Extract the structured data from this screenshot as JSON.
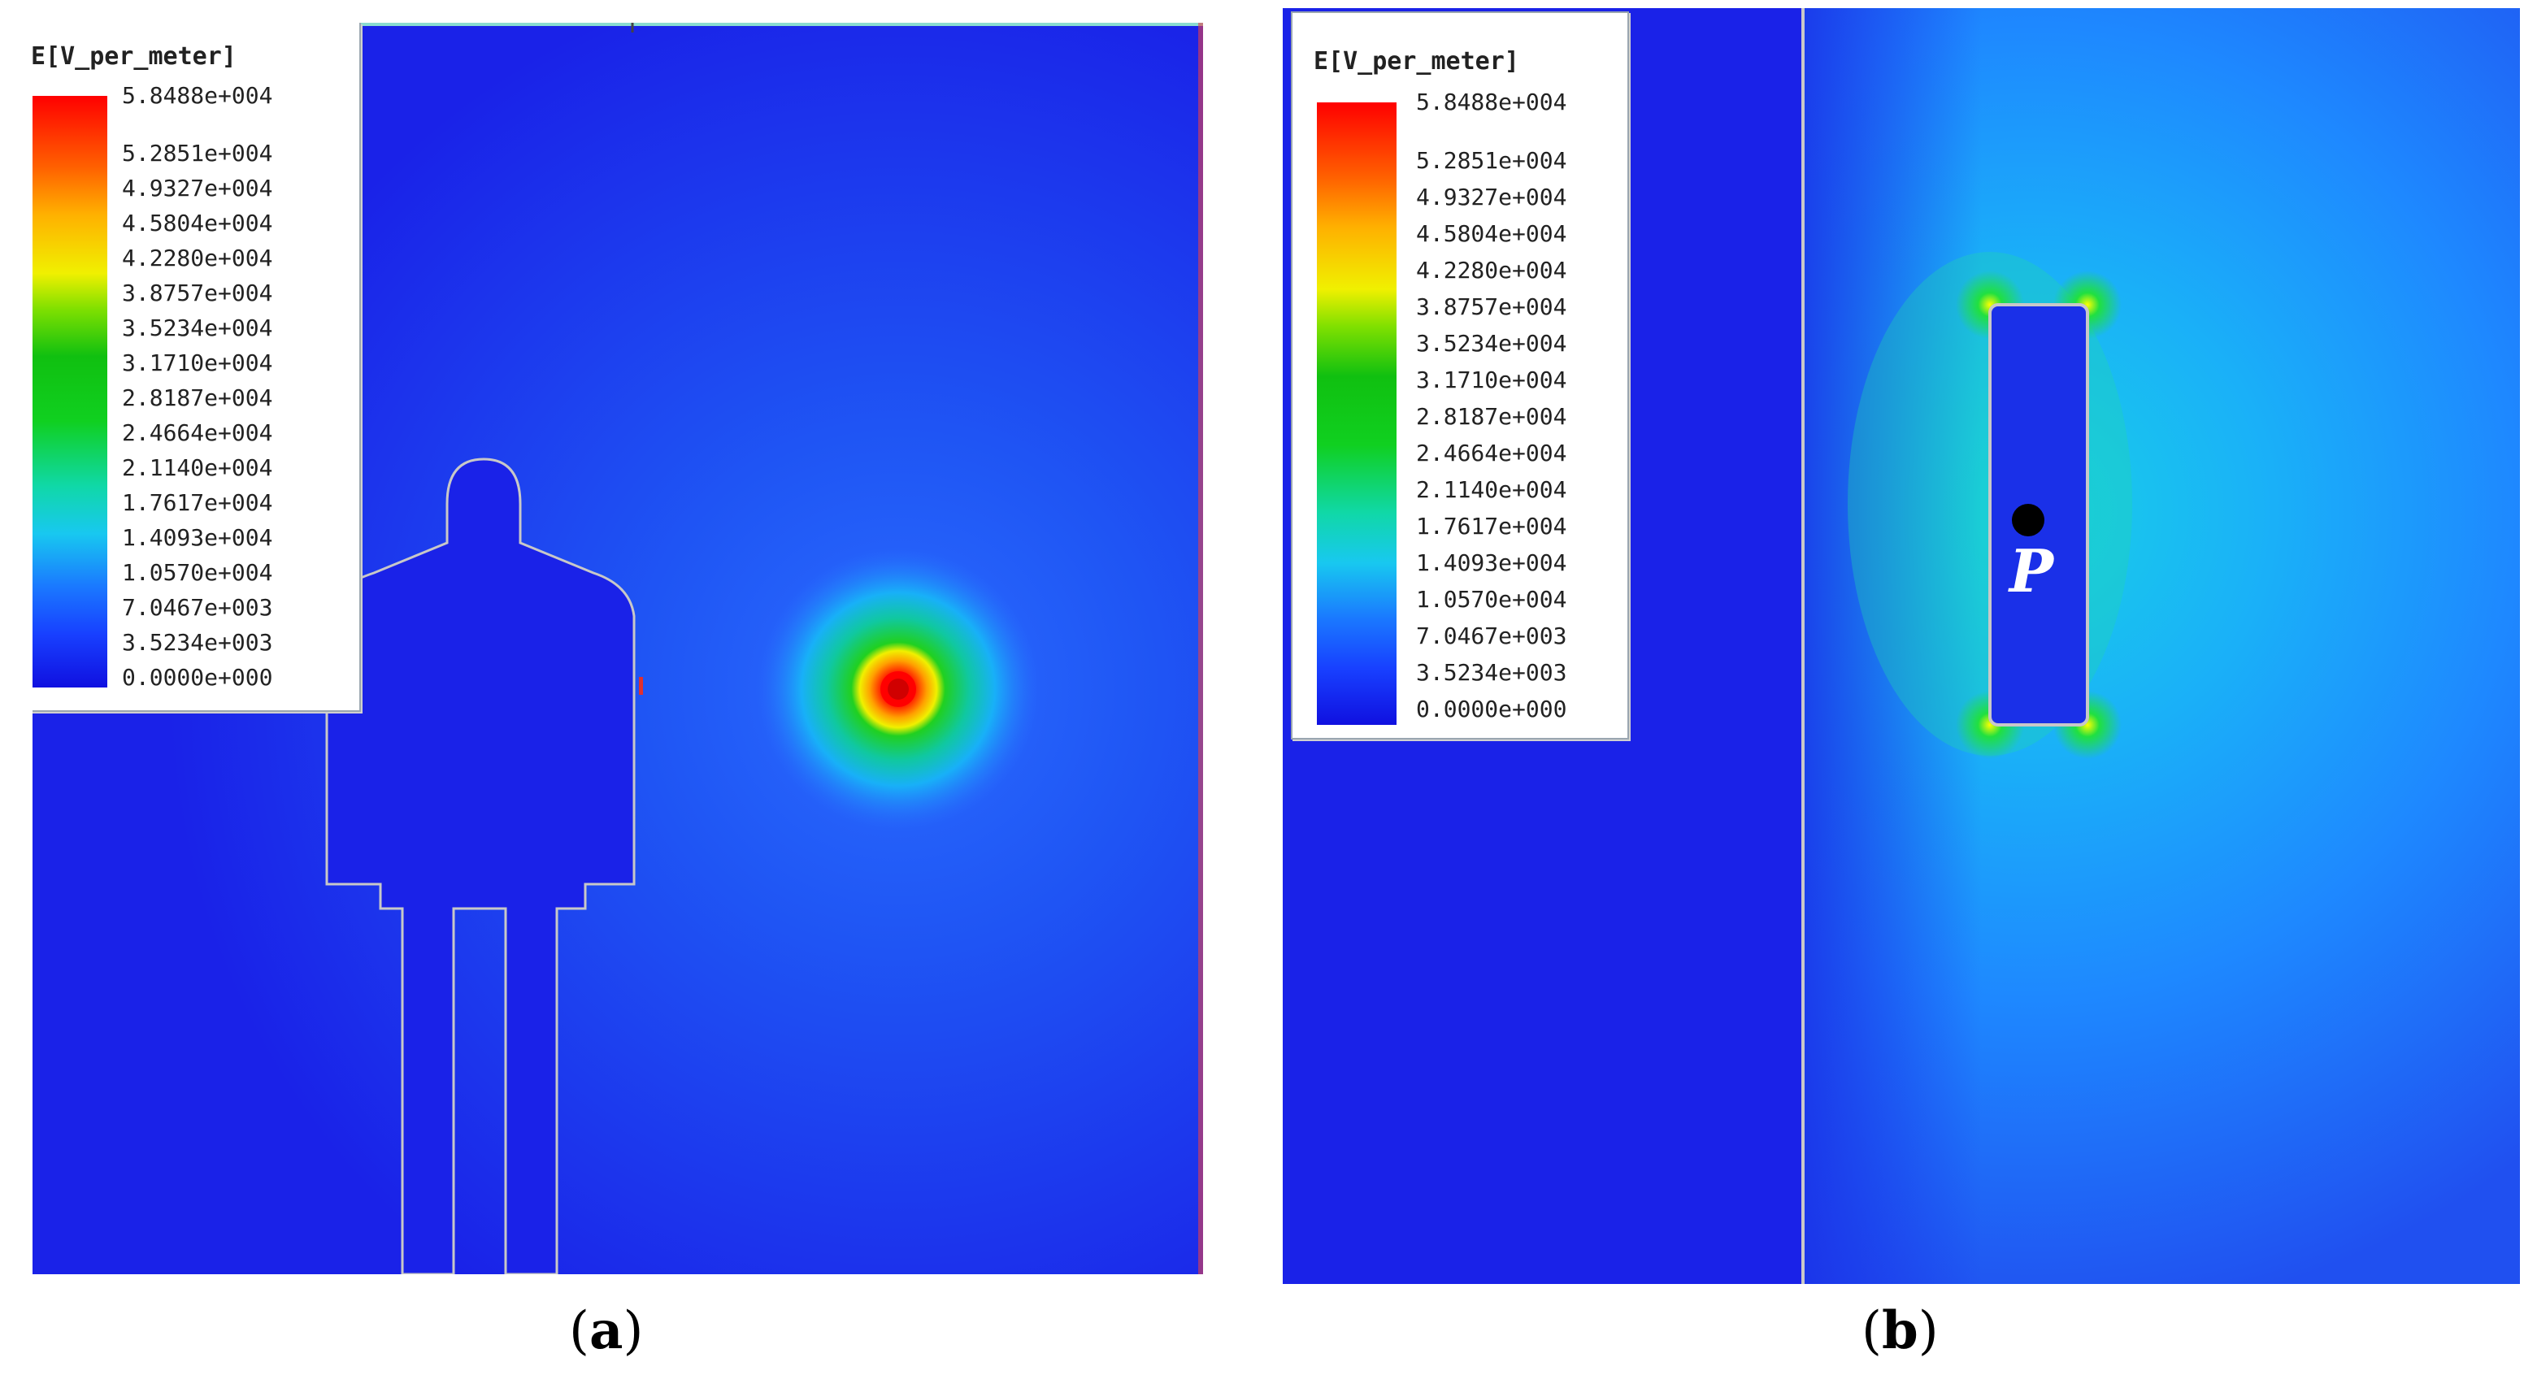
{
  "panels": [
    {
      "label": "a",
      "legend": {
        "title": "E[V_per_meter]",
        "values": [
          "5.8488e+004",
          "5.2851e+004",
          "4.9327e+004",
          "4.5804e+004",
          "4.2280e+004",
          "3.8757e+004",
          "3.5234e+004",
          "3.1710e+004",
          "2.8187e+004",
          "2.4664e+004",
          "2.1140e+004",
          "1.7617e+004",
          "1.4093e+004",
          "1.0570e+004",
          "7.0467e+003",
          "3.5234e+003",
          "0.0000e+000"
        ]
      }
    },
    {
      "label": "b",
      "legend": {
        "title": "E[V_per_meter]",
        "values": [
          "5.8488e+004",
          "5.2851e+004",
          "4.9327e+004",
          "4.5804e+004",
          "4.2280e+004",
          "3.8757e+004",
          "3.5234e+004",
          "3.1710e+004",
          "2.8187e+004",
          "2.4664e+004",
          "2.1140e+004",
          "1.7617e+004",
          "1.4093e+004",
          "1.0570e+004",
          "7.0467e+003",
          "3.5234e+003",
          "0.0000e+000"
        ]
      },
      "point_label": "P"
    }
  ],
  "colors": {
    "field_low": "#1a1ee8",
    "field_mid": "#1ea8ff",
    "field_high": "#ff0000",
    "outline": "#c8c8c8"
  }
}
